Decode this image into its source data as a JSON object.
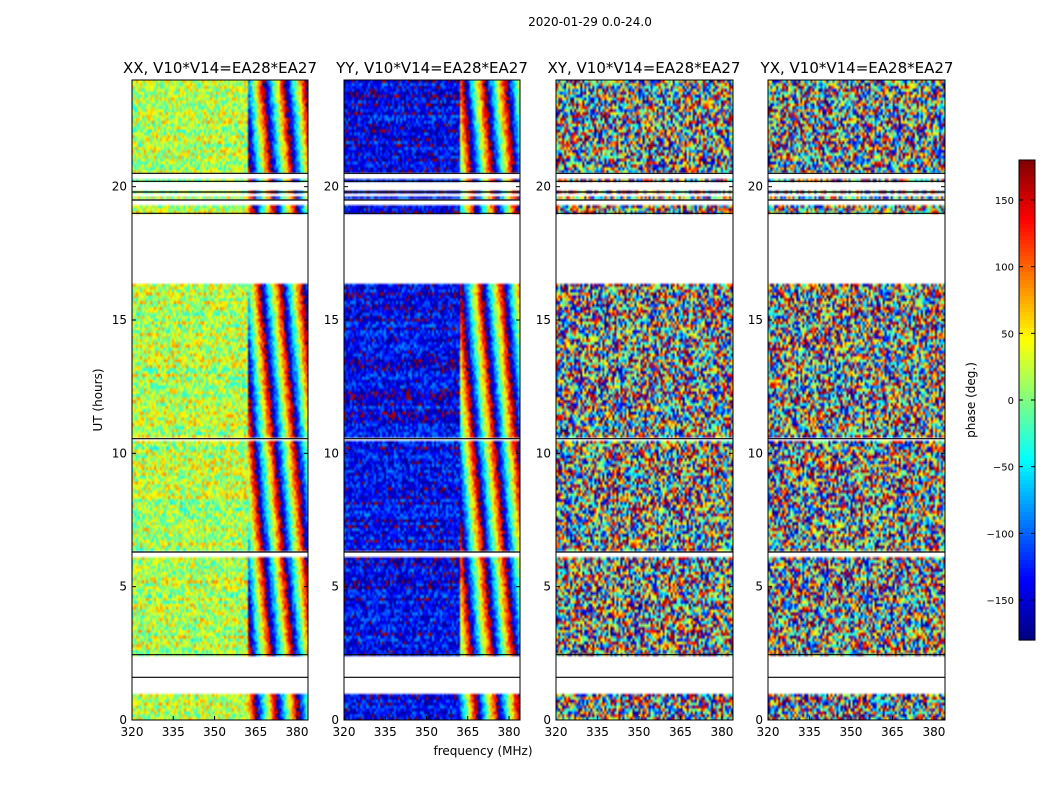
{
  "chart_data": {
    "type": "heatmap",
    "suptitle": "2020-01-29 0.0-24.0",
    "xlabel": "frequency (MHz)",
    "ylabel": "UT (hours)",
    "xlim": [
      320,
      384
    ],
    "ylim": [
      0,
      24
    ],
    "xticks": [
      "320",
      "335",
      "350",
      "365",
      "380"
    ],
    "yticks": [
      "0",
      "5",
      "10",
      "15",
      "20"
    ],
    "panels": [
      {
        "title": "XX, V10*V14=EA28*EA27",
        "mean_phase": 20,
        "noise": 55
      },
      {
        "title": "YY, V10*V14=EA28*EA27",
        "mean_phase": -140,
        "noise": 45
      },
      {
        "title": "XY, V10*V14=EA28*EA27",
        "mean_phase": 0,
        "noise": 180
      },
      {
        "title": "YX, V10*V14=EA28*EA27",
        "mean_phase": 0,
        "noise": 180
      }
    ],
    "fringe_start_mhz": 362,
    "data_gaps_hours": [
      [
        1.0,
        1.6
      ],
      [
        1.65,
        2.45
      ],
      [
        6.1,
        6.3
      ],
      [
        10.45,
        10.55
      ],
      [
        16.4,
        19.0
      ],
      [
        19.35,
        19.5
      ],
      [
        19.6,
        19.8
      ],
      [
        19.9,
        20.2
      ],
      [
        20.3,
        20.5
      ]
    ],
    "colorbar": {
      "label": "phase (deg.)",
      "range": [
        -180,
        180
      ],
      "ticks": [
        "150",
        "100",
        "50",
        "0",
        "−50",
        "−100",
        "−150"
      ],
      "tick_values": [
        150,
        100,
        50,
        0,
        -50,
        -100,
        -150
      ]
    }
  }
}
